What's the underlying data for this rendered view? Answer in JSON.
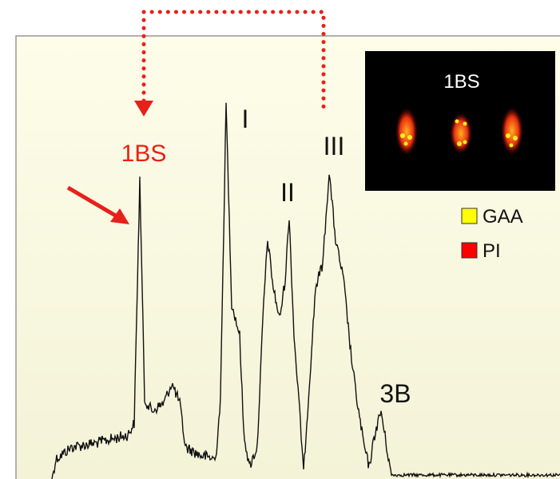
{
  "annotations": {
    "peak_1bs": "1BS",
    "peak_i": "I",
    "peak_ii": "II",
    "peak_iii": "III",
    "peak_3b": "3B"
  },
  "inset": {
    "title": "1BS"
  },
  "legend": {
    "items": [
      "GAA",
      "PI"
    ]
  }
}
